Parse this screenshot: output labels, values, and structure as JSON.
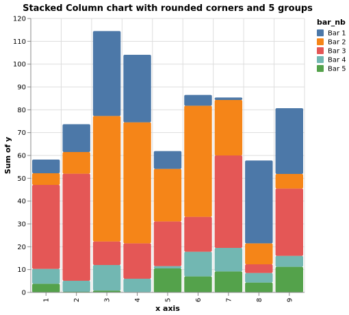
{
  "chart_data": {
    "type": "bar",
    "stacked": true,
    "title": "Stacked Column chart with rounded corners and 5 groups",
    "xlabel": "x axis",
    "ylabel": "Sum of y",
    "ylim": [
      0,
      120
    ],
    "yticks": [
      0,
      10,
      20,
      30,
      40,
      50,
      60,
      70,
      80,
      90,
      100,
      110,
      120
    ],
    "grid": true,
    "legend_title": "bar_nb",
    "legend_position": "top-right",
    "categories": [
      "1",
      "2",
      "3",
      "4",
      "5",
      "6",
      "7",
      "8",
      "9"
    ],
    "series": [
      {
        "name": "Bar 5",
        "color": "#54a24b",
        "values": [
          3.8,
          0.3,
          0.8,
          0.2,
          10.5,
          7.0,
          9.2,
          4.3,
          11.2
        ]
      },
      {
        "name": "Bar 4",
        "color": "#72b7b2",
        "values": [
          6.5,
          4.8,
          11.2,
          5.8,
          1.0,
          10.8,
          10.3,
          4.2,
          4.8
        ]
      },
      {
        "name": "Bar 3",
        "color": "#e45756",
        "values": [
          36.8,
          46.9,
          10.3,
          15.5,
          19.6,
          15.3,
          40.5,
          3.8,
          29.5
        ]
      },
      {
        "name": "Bar 2",
        "color": "#f58518",
        "values": [
          5.1,
          9.5,
          55.0,
          53.0,
          23.0,
          48.7,
          24.3,
          9.2,
          6.4
        ]
      },
      {
        "name": "Bar 1",
        "color": "#4c78a8",
        "values": [
          6.0,
          12.2,
          37.2,
          29.6,
          7.8,
          4.7,
          1.1,
          36.3,
          28.8
        ]
      }
    ]
  }
}
